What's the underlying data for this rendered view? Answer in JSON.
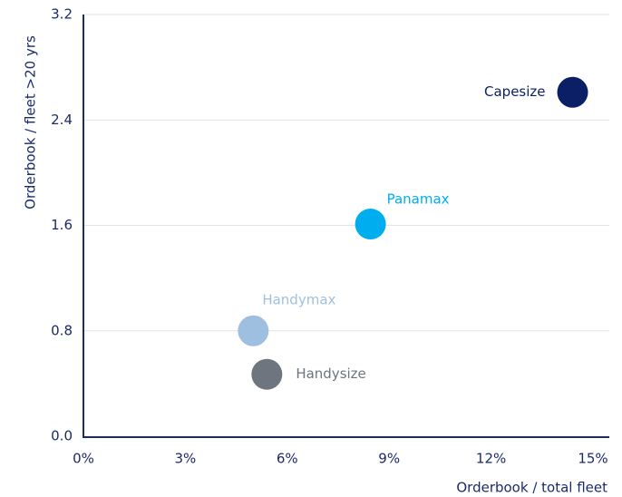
{
  "chart_data": {
    "type": "scatter",
    "xlabel": "Orderbook / total fleet",
    "ylabel": "Orderbook / fleet >20 yrs",
    "series": [
      {
        "name": "Capesize",
        "color": "#0b1f66",
        "x": [
          14.4
        ],
        "values": [
          2.61
        ]
      },
      {
        "name": "Panamax",
        "color": "#00aeef",
        "x": [
          8.45
        ],
        "values": [
          1.61
        ]
      },
      {
        "name": "Handymax",
        "color": "#9ebfe0",
        "x": [
          5.0
        ],
        "values": [
          0.8
        ]
      },
      {
        "name": "Handysize",
        "color": "#6e757e",
        "x": [
          5.4
        ],
        "values": [
          0.47
        ]
      }
    ],
    "xlim": [
      0,
      15
    ],
    "xticks": [
      {
        "value": 0,
        "label": "0%"
      },
      {
        "value": 3,
        "label": "3%"
      },
      {
        "value": 6,
        "label": "6%"
      },
      {
        "value": 9,
        "label": "9%"
      },
      {
        "value": 12,
        "label": "12%"
      },
      {
        "value": 15,
        "label": "15%"
      }
    ],
    "ylim": [
      0,
      3.2
    ],
    "yticks": [
      {
        "value": 0,
        "label": "0.0"
      },
      0.8,
      1.6,
      2.4,
      3.2
    ],
    "grid": true
  }
}
